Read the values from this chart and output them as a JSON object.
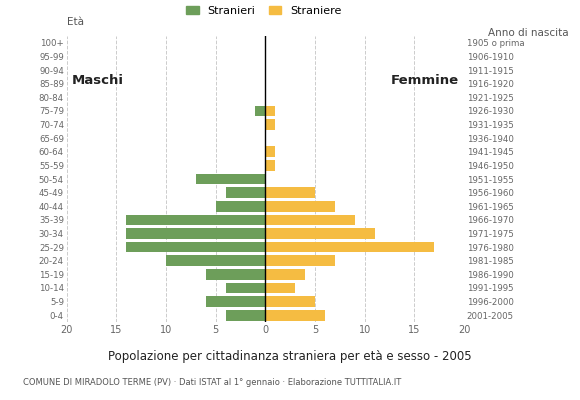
{
  "age_groups": [
    "0-4",
    "5-9",
    "10-14",
    "15-19",
    "20-24",
    "25-29",
    "30-34",
    "35-39",
    "40-44",
    "45-49",
    "50-54",
    "55-59",
    "60-64",
    "65-69",
    "70-74",
    "75-79",
    "80-84",
    "85-89",
    "90-94",
    "95-99",
    "100+"
  ],
  "birth_years": [
    "2001-2005",
    "1996-2000",
    "1991-1995",
    "1986-1990",
    "1981-1985",
    "1976-1980",
    "1971-1975",
    "1966-1970",
    "1961-1965",
    "1956-1960",
    "1951-1955",
    "1946-1950",
    "1941-1945",
    "1936-1940",
    "1931-1935",
    "1926-1930",
    "1921-1925",
    "1916-1920",
    "1911-1915",
    "1906-1910",
    "1905 o prima"
  ],
  "males": [
    4,
    6,
    4,
    6,
    10,
    14,
    14,
    14,
    5,
    4,
    7,
    0,
    0,
    0,
    0,
    1,
    0,
    0,
    0,
    0,
    0
  ],
  "females": [
    6,
    5,
    3,
    4,
    7,
    17,
    11,
    9,
    7,
    5,
    0,
    1,
    1,
    0,
    1,
    1,
    0,
    0,
    0,
    0,
    0
  ],
  "male_color": "#6d9e5a",
  "female_color": "#f5bc42",
  "background_color": "#ffffff",
  "grid_color": "#cccccc",
  "title": "Popolazione per cittadinanza straniera per età e sesso - 2005",
  "subtitle": "COMUNE DI MIRADOLO TERME (PV) · Dati ISTAT al 1° gennaio · Elaborazione TUTTITALIA.IT",
  "legend_male": "Stranieri",
  "legend_female": "Straniere",
  "label_eta": "Età",
  "label_anno": "Anno di nascita",
  "label_maschi": "Maschi",
  "label_femmine": "Femmine",
  "xlim": 20
}
